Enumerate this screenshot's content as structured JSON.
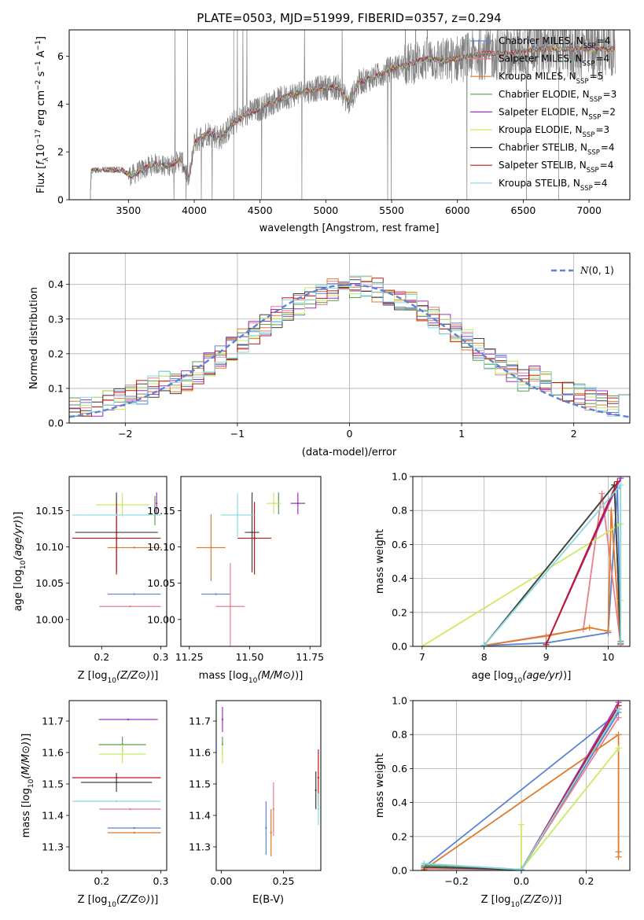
{
  "colors": {
    "Chabrier MILES": "#5b84d4",
    "Salpeter MILES": "#e87f8d",
    "Kroupa MILES": "#e07a2a",
    "Chabrier ELODIE": "#5b9a55",
    "Salpeter ELODIE": "#a030c0",
    "Kroupa ELODIE": "#c8ec60",
    "Chabrier STELIB": "#404040",
    "Salpeter STELIB": "#c01818",
    "Kroupa STELIB": "#88d8e0"
  },
  "chart_data": [
    {
      "id": "spectrum",
      "type": "line",
      "title": "PLATE=0503, MJD=51999, FIBERID=0357, z=0.294",
      "xlabel": "wavelength [Angstrom, rest frame]",
      "ylabel_parts": [
        "Flux [",
        "f",
        "λ",
        "10",
        "−17",
        " erg cm",
        "−2",
        " s",
        "−1",
        " A",
        "−1",
        "]"
      ],
      "xlim": [
        3050,
        7310
      ],
      "ylim": [
        0,
        7.1
      ],
      "xticks": [
        3500,
        4000,
        4500,
        5000,
        5500,
        6000,
        6500,
        7000
      ],
      "yticks": [
        0,
        2,
        4,
        6
      ],
      "spectrum_start": 3210,
      "spectrum_end": 7200,
      "continuum": [
        [
          3210,
          0.0
        ],
        [
          3215,
          1.2
        ],
        [
          3300,
          1.25
        ],
        [
          3450,
          1.25
        ],
        [
          3520,
          1.0
        ],
        [
          3600,
          1.25
        ],
        [
          3700,
          1.5
        ],
        [
          3800,
          1.4
        ],
        [
          3900,
          1.7
        ],
        [
          3960,
          0.8
        ],
        [
          4000,
          2.4
        ],
        [
          4100,
          2.8
        ],
        [
          4200,
          2.6
        ],
        [
          4300,
          3.2
        ],
        [
          4400,
          3.6
        ],
        [
          4500,
          3.8
        ],
        [
          4600,
          4.1
        ],
        [
          4700,
          4.3
        ],
        [
          4800,
          4.5
        ],
        [
          4900,
          4.6
        ],
        [
          5000,
          4.7
        ],
        [
          5100,
          4.7
        ],
        [
          5175,
          4.0
        ],
        [
          5250,
          4.9
        ],
        [
          5400,
          5.2
        ],
        [
          5500,
          5.5
        ],
        [
          5600,
          5.6
        ],
        [
          5700,
          5.8
        ],
        [
          5800,
          5.9
        ],
        [
          5900,
          5.8
        ],
        [
          6000,
          5.9
        ],
        [
          6200,
          6.1
        ],
        [
          6400,
          6.1
        ],
        [
          6600,
          6.3
        ],
        [
          6800,
          6.3
        ],
        [
          7000,
          6.3
        ],
        [
          7200,
          6.3
        ]
      ],
      "legend": [
        {
          "label": "Chabrier MILES",
          "n_ssp": "=4"
        },
        {
          "label": "Salpeter MILES",
          "n_ssp": "=4"
        },
        {
          "label": "Kroupa MILES",
          "n_ssp": "=5"
        },
        {
          "label": "Chabrier ELODIE",
          "n_ssp": "=3"
        },
        {
          "label": "Salpeter ELODIE",
          "n_ssp": "=2"
        },
        {
          "label": "Kroupa ELODIE",
          "n_ssp": "=3"
        },
        {
          "label": "Chabrier STELIB",
          "n_ssp": "=4"
        },
        {
          "label": "Salpeter STELIB",
          "n_ssp": "=4"
        },
        {
          "label": "Kroupa STELIB",
          "n_ssp": "=4"
        }
      ],
      "legend_sub": "SSP",
      "legend_prefix": "N",
      "legend_position": "upper right"
    },
    {
      "id": "residuals",
      "type": "histogram",
      "xlabel": "(data-model)/error",
      "ylabel": "Normed distribution",
      "xlim": [
        -2.5,
        2.5
      ],
      "ylim": [
        0,
        0.49
      ],
      "xticks": [
        -2,
        -1,
        0,
        1,
        2
      ],
      "yticks": [
        0.0,
        0.1,
        0.2,
        0.3,
        0.4
      ],
      "bin_width": 0.1,
      "grid": true,
      "reference_curve": {
        "name": "N(0,1)",
        "style": "dashed",
        "color": "#5b84d4"
      },
      "legend_position": "upper right"
    },
    {
      "id": "age_vs_Z",
      "type": "scatter",
      "xlabel": "Z [log10(Z/Z⊙)]",
      "ylabel": "age  [log10(age/yr)]",
      "xlim": [
        0.145,
        0.31
      ],
      "ylim": [
        9.963,
        10.197
      ],
      "xticks": [
        0.2,
        0.3
      ],
      "yticks": [
        10.0,
        10.05,
        10.1,
        10.15
      ],
      "points": [
        {
          "model": "Chabrier MILES",
          "x": 0.255,
          "xerr": 0.045,
          "y": 10.035,
          "yerr": 0.0
        },
        {
          "model": "Salpeter MILES",
          "x": 0.248,
          "xerr": 0.052,
          "y": 10.018,
          "yerr": 0.0
        },
        {
          "model": "Kroupa MILES",
          "x": 0.255,
          "xerr": 0.045,
          "y": 10.099,
          "yerr": 0.0
        },
        {
          "model": "Chabrier ELODIE",
          "x": 0.29,
          "xerr": 0.0,
          "y": 10.15,
          "yerr": 0.02
        },
        {
          "model": "Salpeter ELODIE",
          "x": 0.293,
          "xerr": 0.0,
          "y": 10.16,
          "yerr": 0.015
        },
        {
          "model": "Kroupa ELODIE",
          "x": 0.235,
          "xerr": 0.045,
          "y": 10.158,
          "yerr": 0.016
        },
        {
          "model": "Chabrier STELIB",
          "x": 0.225,
          "xerr": 0.07,
          "y": 10.12,
          "yerr": 0.055
        },
        {
          "model": "Salpeter STELIB",
          "x": 0.225,
          "xerr": 0.075,
          "y": 10.112,
          "yerr": 0.05
        },
        {
          "model": "Kroupa STELIB",
          "x": 0.225,
          "xerr": 0.075,
          "y": 10.144,
          "yerr": 0.0
        }
      ]
    },
    {
      "id": "age_vs_mass",
      "type": "scatter",
      "xlabel": "mass [log10(M/M⊙)]",
      "ylabel": "",
      "xlim": [
        11.215,
        11.795
      ],
      "ylim": [
        9.963,
        10.197
      ],
      "xticks": [
        11.25,
        11.5,
        11.75
      ],
      "yticks": [
        10.0,
        10.05,
        10.1,
        10.15
      ],
      "points": [
        {
          "model": "Chabrier MILES",
          "x": 11.36,
          "xerr": 0.06,
          "y": 10.035,
          "yerr": 0.0
        },
        {
          "model": "Salpeter MILES",
          "x": 11.42,
          "xerr": 0.06,
          "y": 10.018,
          "yerr": 0.06
        },
        {
          "model": "Kroupa MILES",
          "x": 11.34,
          "xerr": 0.06,
          "y": 10.099,
          "yerr": 0.046
        },
        {
          "model": "Chabrier ELODIE",
          "x": 11.62,
          "xerr": 0.0,
          "y": 10.16,
          "yerr": 0.015
        },
        {
          "model": "Salpeter ELODIE",
          "x": 11.7,
          "xerr": 0.03,
          "y": 10.16,
          "yerr": 0.015
        },
        {
          "model": "Kroupa ELODIE",
          "x": 11.6,
          "xerr": 0.03,
          "y": 10.16,
          "yerr": 0.015
        },
        {
          "model": "Chabrier STELIB",
          "x": 11.51,
          "xerr": 0.03,
          "y": 10.12,
          "yerr": 0.055
        },
        {
          "model": "Salpeter STELIB",
          "x": 11.52,
          "xerr": 0.07,
          "y": 10.112,
          "yerr": 0.05
        },
        {
          "model": "Kroupa STELIB",
          "x": 11.45,
          "xerr": 0.07,
          "y": 10.144,
          "yerr": 0.03
        }
      ]
    },
    {
      "id": "massweight_vs_age",
      "type": "line",
      "xlabel": "age  [log10(age/yr)]",
      "ylabel": "mass weight",
      "xlim": [
        6.85,
        10.35
      ],
      "ylim": [
        0,
        1
      ],
      "xticks": [
        7,
        8,
        9,
        10
      ],
      "yticks": [
        0.0,
        0.2,
        0.4,
        0.6,
        0.8,
        1.0
      ],
      "grid": true,
      "series": [
        {
          "model": "Chabrier MILES",
          "points": [
            [
              8.0,
              0.005
            ],
            [
              9.0,
              0.02
            ],
            [
              10.0,
              0.08
            ],
            [
              10.15,
              0.93
            ],
            [
              10.2,
              0.015
            ]
          ]
        },
        {
          "model": "Salpeter MILES",
          "points": [
            [
              8.0,
              0.005
            ],
            [
              9.6,
              0.1
            ],
            [
              9.9,
              0.9
            ],
            [
              10.2,
              0.015
            ]
          ]
        },
        {
          "model": "Kroupa MILES",
          "points": [
            [
              8.0,
              0.005
            ],
            [
              9.0,
              0.06
            ],
            [
              9.7,
              0.11
            ],
            [
              10.0,
              0.09
            ],
            [
              10.05,
              0.8
            ],
            [
              10.2,
              0.01
            ]
          ]
        },
        {
          "model": "Chabrier ELODIE",
          "points": [
            [
              8.0,
              0.005
            ],
            [
              10.1,
              0.95
            ],
            [
              10.2,
              0.03
            ]
          ]
        },
        {
          "model": "Salpeter ELODIE",
          "points": [
            [
              9.0,
              0.01
            ],
            [
              10.2,
              0.99
            ]
          ]
        },
        {
          "model": "Kroupa ELODIE",
          "points": [
            [
              7.0,
              0.0
            ],
            [
              10.2,
              0.72
            ],
            [
              10.2,
              0.27
            ]
          ]
        },
        {
          "model": "Chabrier STELIB",
          "points": [
            [
              8.0,
              0.005
            ],
            [
              10.1,
              0.95
            ],
            [
              10.2,
              0.02
            ]
          ]
        },
        {
          "model": "Salpeter STELIB",
          "points": [
            [
              9.0,
              0.01
            ],
            [
              10.15,
              0.97
            ]
          ]
        },
        {
          "model": "Kroupa STELIB",
          "points": [
            [
              8.0,
              0.005
            ],
            [
              10.2,
              0.95
            ],
            [
              10.2,
              0.02
            ]
          ]
        }
      ]
    },
    {
      "id": "mass_vs_Z",
      "type": "scatter",
      "xlabel": "Z [log10(Z/Z⊙)]",
      "ylabel": "mass [log10(M/M⊙)]",
      "xlim": [
        0.145,
        0.31
      ],
      "ylim": [
        11.225,
        11.765
      ],
      "xticks": [
        0.2,
        0.3
      ],
      "yticks": [
        11.3,
        11.4,
        11.5,
        11.6,
        11.7
      ],
      "points": [
        {
          "model": "Chabrier MILES",
          "x": 0.255,
          "xerr": 0.045,
          "y": 11.36,
          "yerr": 0.0
        },
        {
          "model": "Salpeter MILES",
          "x": 0.248,
          "xerr": 0.052,
          "y": 11.42,
          "yerr": 0.0
        },
        {
          "model": "Kroupa MILES",
          "x": 0.255,
          "xerr": 0.045,
          "y": 11.345,
          "yerr": 0.0
        },
        {
          "model": "Chabrier ELODIE",
          "x": 0.235,
          "xerr": 0.04,
          "y": 11.625,
          "yerr": 0.025
        },
        {
          "model": "Salpeter ELODIE",
          "x": 0.245,
          "xerr": 0.05,
          "y": 11.705,
          "yerr": 0.0
        },
        {
          "model": "Kroupa ELODIE",
          "x": 0.235,
          "xerr": 0.04,
          "y": 11.595,
          "yerr": 0.03
        },
        {
          "model": "Chabrier STELIB",
          "x": 0.225,
          "xerr": 0.06,
          "y": 11.505,
          "yerr": 0.03
        },
        {
          "model": "Salpeter STELIB",
          "x": 0.225,
          "xerr": 0.075,
          "y": 11.52,
          "yerr": 0.0
        },
        {
          "model": "Kroupa STELIB",
          "x": 0.225,
          "xerr": 0.075,
          "y": 11.445,
          "yerr": 0.0
        }
      ]
    },
    {
      "id": "mass_vs_EBV",
      "type": "scatter",
      "xlabel": "E(B-V)",
      "ylabel": "",
      "xlim": [
        -0.02,
        0.4
      ],
      "ylim": [
        11.225,
        11.765
      ],
      "xticks": [
        0.0,
        0.25
      ],
      "yticks": [
        11.3,
        11.4,
        11.5,
        11.6,
        11.7
      ],
      "points": [
        {
          "model": "Chabrier MILES",
          "x": 0.18,
          "xerr": 0.0,
          "y": 11.36,
          "yerr": 0.085
        },
        {
          "model": "Salpeter MILES",
          "x": 0.21,
          "xerr": 0.0,
          "y": 11.42,
          "yerr": 0.085
        },
        {
          "model": "Kroupa MILES",
          "x": 0.2,
          "xerr": 0.0,
          "y": 11.345,
          "yerr": 0.075
        },
        {
          "model": "Chabrier ELODIE",
          "x": 0.005,
          "xerr": 0.0,
          "y": 11.625,
          "yerr": 0.025
        },
        {
          "model": "Salpeter ELODIE",
          "x": 0.005,
          "xerr": 0.0,
          "y": 11.705,
          "yerr": 0.04
        },
        {
          "model": "Kroupa ELODIE",
          "x": 0.005,
          "xerr": 0.0,
          "y": 11.595,
          "yerr": 0.03
        },
        {
          "model": "Chabrier STELIB",
          "x": 0.38,
          "xerr": 0.0,
          "y": 11.48,
          "yerr": 0.06
        },
        {
          "model": "Salpeter STELIB",
          "x": 0.39,
          "xerr": 0.0,
          "y": 11.52,
          "yerr": 0.09
        },
        {
          "model": "Kroupa STELIB",
          "x": 0.39,
          "xerr": 0.0,
          "y": 11.42,
          "yerr": 0.05
        }
      ]
    },
    {
      "id": "massweight_vs_Z",
      "type": "line",
      "xlabel": "Z [log10(Z/Z⊙)]",
      "ylabel": "mass weight",
      "xlim": [
        -0.335,
        0.335
      ],
      "ylim": [
        0,
        1
      ],
      "xticks": [
        -0.2,
        0.0,
        0.2
      ],
      "yticks": [
        0.0,
        0.2,
        0.4,
        0.6,
        0.8,
        1.0
      ],
      "grid": true,
      "series": [
        {
          "model": "Chabrier MILES",
          "points": [
            [
              -0.3,
              0.02
            ],
            [
              0.3,
              0.93
            ],
            [
              0.0,
              0.005
            ],
            [
              -0.3,
              0.04
            ]
          ]
        },
        {
          "model": "Salpeter MILES",
          "points": [
            [
              -0.3,
              0.01
            ],
            [
              0.0,
              0.005
            ],
            [
              0.3,
              0.9
            ]
          ]
        },
        {
          "model": "Kroupa MILES",
          "points": [
            [
              -0.3,
              0.005
            ],
            [
              0.3,
              0.8
            ],
            [
              0.3,
              0.11
            ],
            [
              0.3,
              0.08
            ]
          ]
        },
        {
          "model": "Chabrier ELODIE",
          "points": [
            [
              -0.3,
              0.03
            ],
            [
              0.0,
              0.005
            ],
            [
              0.3,
              0.95
            ]
          ]
        },
        {
          "model": "Salpeter ELODIE",
          "points": [
            [
              0.0,
              0.005
            ],
            [
              0.3,
              0.99
            ]
          ]
        },
        {
          "model": "Kroupa ELODIE",
          "points": [
            [
              0.0,
              0.0
            ],
            [
              0.0,
              0.27
            ],
            [
              0.0,
              0.005
            ],
            [
              0.3,
              0.72
            ]
          ]
        },
        {
          "model": "Chabrier STELIB",
          "points": [
            [
              -0.3,
              0.02
            ],
            [
              0.0,
              0.005
            ],
            [
              0.3,
              0.95
            ]
          ]
        },
        {
          "model": "Salpeter STELIB",
          "points": [
            [
              0.0,
              0.005
            ],
            [
              0.3,
              0.97
            ]
          ]
        },
        {
          "model": "Kroupa STELIB",
          "points": [
            [
              -0.3,
              0.04
            ],
            [
              0.0,
              0.005
            ],
            [
              0.3,
              0.95
            ]
          ]
        }
      ]
    }
  ]
}
